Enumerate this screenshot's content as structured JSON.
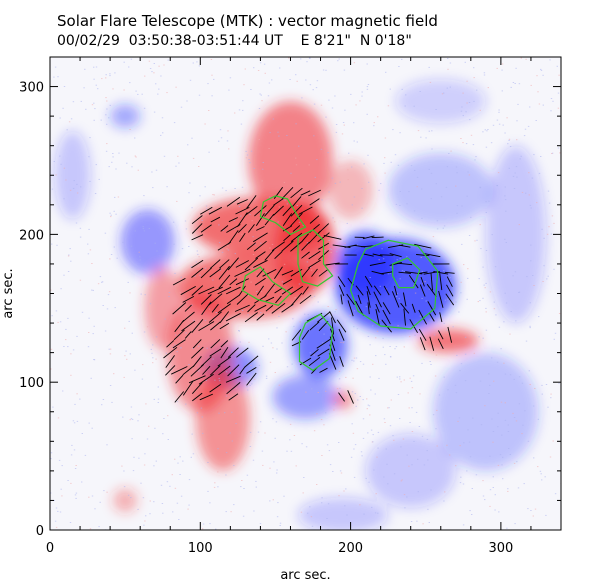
{
  "header": {
    "title": "Solar Flare Telescope (MTK) : vector magnetic field",
    "subtitle": "00/02/29  03:50:38-03:51:44 UT    E 8'21\"  N 0'18\""
  },
  "chart_data": {
    "type": "heatmap",
    "xlabel": "arc sec.",
    "ylabel": "arc sec.",
    "xlim": [
      0,
      340
    ],
    "ylim": [
      0,
      320
    ],
    "xticks": [
      0,
      100,
      200,
      300
    ],
    "yticks": [
      0,
      100,
      200,
      300
    ],
    "colors": {
      "positive": "#f0282d",
      "negative": "#1e28ff",
      "contour": "#32c832",
      "vector": "#000000",
      "frame": "#000000"
    },
    "positive_regions": [
      {
        "x": 160,
        "y": 250,
        "rx": 28,
        "ry": 40,
        "weight": 0.8
      },
      {
        "x": 140,
        "y": 205,
        "rx": 45,
        "ry": 20,
        "weight": 0.95
      },
      {
        "x": 130,
        "y": 165,
        "rx": 45,
        "ry": 22,
        "weight": 0.95
      },
      {
        "x": 170,
        "y": 190,
        "rx": 20,
        "ry": 30,
        "weight": 1.0
      },
      {
        "x": 100,
        "y": 120,
        "rx": 22,
        "ry": 40,
        "weight": 0.75
      },
      {
        "x": 115,
        "y": 75,
        "rx": 18,
        "ry": 35,
        "weight": 0.7
      },
      {
        "x": 75,
        "y": 150,
        "rx": 12,
        "ry": 28,
        "weight": 0.6
      },
      {
        "x": 265,
        "y": 128,
        "rx": 20,
        "ry": 8,
        "weight": 0.9
      },
      {
        "x": 200,
        "y": 230,
        "rx": 15,
        "ry": 20,
        "weight": 0.45
      },
      {
        "x": 195,
        "y": 88,
        "rx": 6,
        "ry": 6,
        "weight": 0.8
      },
      {
        "x": 50,
        "y": 20,
        "rx": 8,
        "ry": 8,
        "weight": 0.5
      }
    ],
    "negative_regions": [
      {
        "x": 230,
        "y": 165,
        "rx": 40,
        "ry": 32,
        "weight": 1.0
      },
      {
        "x": 210,
        "y": 180,
        "rx": 20,
        "ry": 22,
        "weight": 0.9
      },
      {
        "x": 180,
        "y": 125,
        "rx": 18,
        "ry": 22,
        "weight": 0.85
      },
      {
        "x": 65,
        "y": 195,
        "rx": 18,
        "ry": 22,
        "weight": 0.6
      },
      {
        "x": 120,
        "y": 110,
        "rx": 18,
        "ry": 14,
        "weight": 0.7
      },
      {
        "x": 170,
        "y": 90,
        "rx": 22,
        "ry": 15,
        "weight": 0.55
      },
      {
        "x": 260,
        "y": 230,
        "rx": 35,
        "ry": 25,
        "weight": 0.35
      },
      {
        "x": 310,
        "y": 200,
        "rx": 20,
        "ry": 60,
        "weight": 0.3
      },
      {
        "x": 290,
        "y": 80,
        "rx": 35,
        "ry": 40,
        "weight": 0.35
      },
      {
        "x": 240,
        "y": 40,
        "rx": 30,
        "ry": 25,
        "weight": 0.3
      },
      {
        "x": 15,
        "y": 240,
        "rx": 12,
        "ry": 30,
        "weight": 0.3
      },
      {
        "x": 260,
        "y": 290,
        "rx": 30,
        "ry": 15,
        "weight": 0.25
      },
      {
        "x": 50,
        "y": 280,
        "rx": 10,
        "ry": 8,
        "weight": 0.5
      },
      {
        "x": 195,
        "y": 10,
        "rx": 30,
        "ry": 12,
        "weight": 0.3
      }
    ],
    "contours": [
      [
        [
          142,
          222
        ],
        [
          150,
          226
        ],
        [
          158,
          224
        ],
        [
          165,
          212
        ],
        [
          170,
          205
        ],
        [
          160,
          200
        ],
        [
          150,
          208
        ],
        [
          140,
          212
        ],
        [
          142,
          222
        ]
      ],
      [
        [
          165,
          198
        ],
        [
          175,
          203
        ],
        [
          182,
          196
        ],
        [
          182,
          180
        ],
        [
          188,
          172
        ],
        [
          178,
          165
        ],
        [
          168,
          168
        ],
        [
          165,
          180
        ],
        [
          165,
          198
        ]
      ],
      [
        [
          130,
          172
        ],
        [
          140,
          178
        ],
        [
          148,
          168
        ],
        [
          160,
          160
        ],
        [
          152,
          152
        ],
        [
          138,
          156
        ],
        [
          128,
          162
        ],
        [
          130,
          172
        ]
      ],
      [
        [
          210,
          190
        ],
        [
          225,
          196
        ],
        [
          245,
          192
        ],
        [
          258,
          175
        ],
        [
          256,
          150
        ],
        [
          240,
          136
        ],
        [
          220,
          138
        ],
        [
          205,
          148
        ],
        [
          200,
          162
        ],
        [
          205,
          180
        ],
        [
          210,
          190
        ]
      ],
      [
        [
          228,
          180
        ],
        [
          238,
          184
        ],
        [
          246,
          176
        ],
        [
          242,
          164
        ],
        [
          232,
          164
        ],
        [
          228,
          172
        ],
        [
          228,
          180
        ]
      ],
      [
        [
          170,
          140
        ],
        [
          180,
          146
        ],
        [
          188,
          136
        ],
        [
          186,
          116
        ],
        [
          175,
          108
        ],
        [
          166,
          114
        ],
        [
          166,
          130
        ],
        [
          170,
          140
        ]
      ]
    ],
    "vector_region": {
      "x": [
        80,
        270
      ],
      "y": [
        90,
        230
      ]
    }
  }
}
